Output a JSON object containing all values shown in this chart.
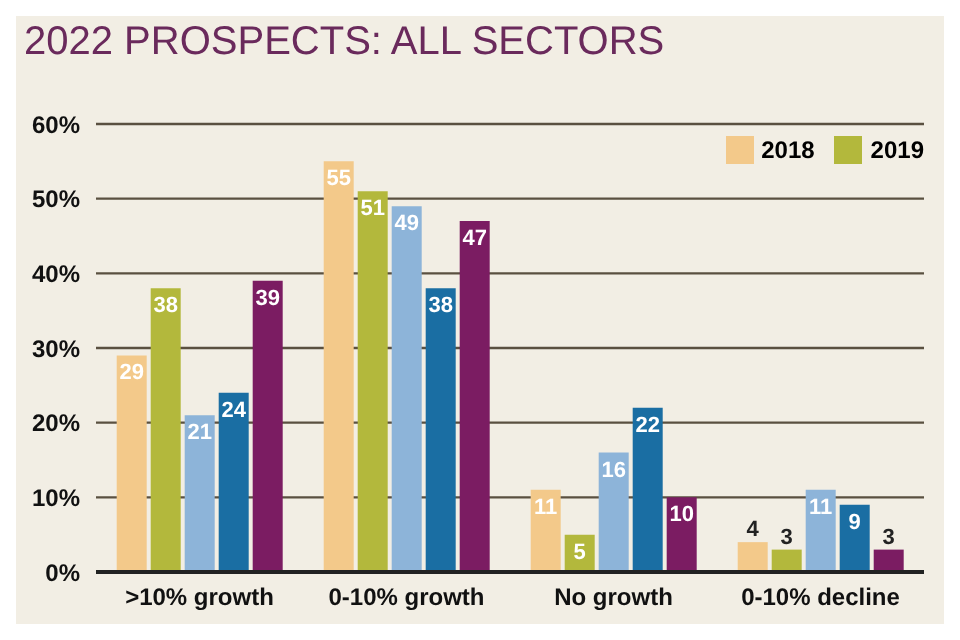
{
  "chart_data": {
    "type": "bar",
    "title": "2022 PROSPECTS: ALL SECTORS",
    "categories": [
      ">10% growth",
      "0-10% growth",
      "No growth",
      "0-10% decline"
    ],
    "series": [
      {
        "name": "2018",
        "color": "#f3c98a",
        "values": [
          29,
          55,
          11,
          4
        ]
      },
      {
        "name": "2019",
        "color": "#b3b83c",
        "values": [
          38,
          51,
          5,
          3
        ]
      },
      {
        "color": "#8db4d9",
        "values": [
          21,
          49,
          16,
          11
        ]
      },
      {
        "color": "#1a6ea3",
        "values": [
          24,
          38,
          22,
          9
        ]
      },
      {
        "color": "#7b1c62",
        "values": [
          39,
          47,
          10,
          3
        ]
      }
    ],
    "ylim": [
      0,
      60
    ],
    "yticks": [
      {
        "value": 0,
        "label": "0%"
      },
      {
        "value": 10,
        "label": "10%"
      },
      {
        "value": 20,
        "label": "20%"
      },
      {
        "value": 30,
        "label": "30%"
      },
      {
        "value": 40,
        "label": "40%"
      },
      {
        "value": 50,
        "label": "50%"
      },
      {
        "value": 60,
        "label": "60%"
      }
    ],
    "grid": "y",
    "legend": "top right",
    "data_labels": true
  }
}
